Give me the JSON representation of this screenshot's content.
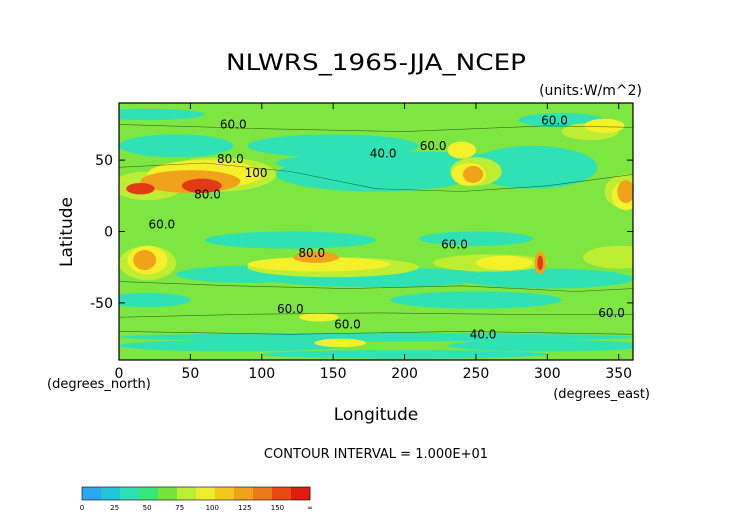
{
  "chart_data": {
    "type": "heatmap",
    "title": "NLWRS_1965-JJA_NCEP",
    "units_label": "(units:W/m^2)",
    "xlabel": "Longitude",
    "ylabel": "Latitude",
    "x_unit_label": "(degrees_east)",
    "y_unit_label": "(degrees_north)",
    "xlim": [
      0,
      360
    ],
    "ylim": [
      -90,
      90
    ],
    "xticks": [
      "0",
      "50",
      "100",
      "150",
      "200",
      "250",
      "300",
      "350"
    ],
    "yticks": [
      "50",
      "0",
      "-50"
    ],
    "contour_interval_text": "CONTOUR INTERVAL = 1.000E+01",
    "contour_labels": [
      {
        "text": "60.0",
        "lon": 80,
        "lat": 72
      },
      {
        "text": "80.0",
        "lon": 78,
        "lat": 48
      },
      {
        "text": "100",
        "lon": 96,
        "lat": 38
      },
      {
        "text": "40.0",
        "lon": 185,
        "lat": 52
      },
      {
        "text": "60.0",
        "lon": 220,
        "lat": 57
      },
      {
        "text": "60.0",
        "lon": 305,
        "lat": 75
      },
      {
        "text": "60.0",
        "lon": 30,
        "lat": 2
      },
      {
        "text": "80.0",
        "lon": 62,
        "lat": 23
      },
      {
        "text": "60.0",
        "lon": 235,
        "lat": -12
      },
      {
        "text": "80.0",
        "lon": 135,
        "lat": -18
      },
      {
        "text": "60.0",
        "lon": 120,
        "lat": -57
      },
      {
        "text": "60.0",
        "lon": 160,
        "lat": -68
      },
      {
        "text": "40.0",
        "lon": 255,
        "lat": -75
      },
      {
        "text": "60.0",
        "lon": 345,
        "lat": -60
      }
    ],
    "colorbar": {
      "labels": [
        "0",
        "25",
        "50",
        "75",
        "100",
        "125",
        "150",
        "∞"
      ],
      "colors": [
        "#2aa7f0",
        "#22c6d8",
        "#2ee0b4",
        "#39e67a",
        "#76e23a",
        "#b8ee34",
        "#ecee2c",
        "#f2c81e",
        "#f0a21a",
        "#ec7a18",
        "#e84a12",
        "#e21c10"
      ]
    },
    "field_colors": {
      "low": "#2fe2b4",
      "base": "#7ee640",
      "mid": "#bdee33",
      "yellow": "#f4f12a",
      "orange": "#f0a21a",
      "red": "#e23a14"
    }
  }
}
